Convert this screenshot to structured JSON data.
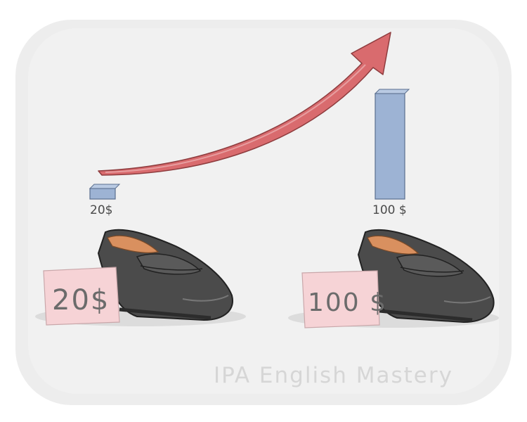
{
  "scene": {
    "left_bar_label": "20$",
    "right_bar_label": "100 $",
    "left_tag_text": "20$",
    "right_tag_text": "100 $",
    "watermark": "IPA English Mastery"
  },
  "colors": {
    "background_panel": "#ededed",
    "arrow": "#d96b6e",
    "bar": "#9db3d4",
    "price_tag": "#f6d3d6",
    "shoe": "#4b4b4b",
    "shoe_lining": "#d9905f"
  },
  "chart_data": {
    "type": "bar",
    "categories": [
      "20$",
      "100 $"
    ],
    "values": [
      20,
      100
    ]
  }
}
